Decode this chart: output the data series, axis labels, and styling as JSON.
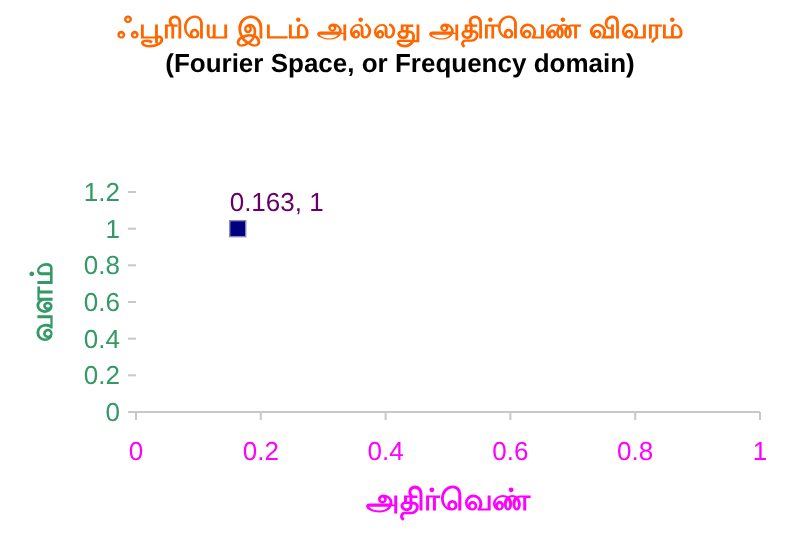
{
  "chart_data": {
    "type": "scatter",
    "title": "ஃபூரியெ இடம் அல்லது அதிர்வெண் விவரம் (Fourier Space, or Frequency domain)",
    "xlabel": "அதிர்வெண்",
    "ylabel": "வளம்",
    "x": [
      0.163
    ],
    "values": [
      1
    ],
    "value_labels": [
      "0.163, 1"
    ],
    "color": "#000080",
    "marker": "square",
    "xlim": [
      0,
      1
    ],
    "xticks": [
      0,
      0.2,
      0.4,
      0.6,
      0.8,
      1
    ],
    "ylim": [
      0,
      1.2
    ],
    "yticks": [
      0,
      0.2,
      0.4,
      0.6,
      0.8,
      1,
      1.2
    ],
    "grid": false
  }
}
